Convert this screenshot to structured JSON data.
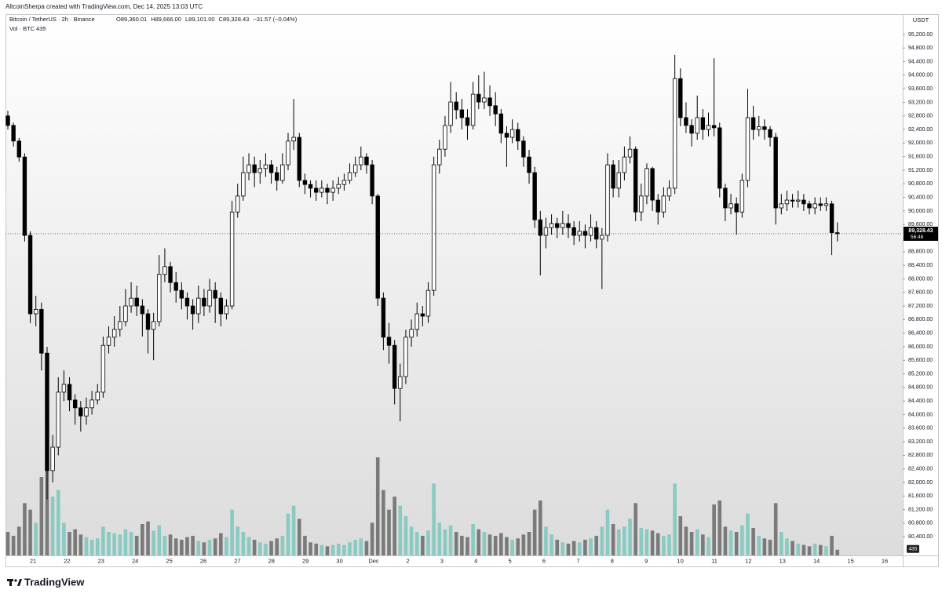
{
  "chart_data": {
    "type": "candlestick",
    "watermark": "AltcoinSherpa created with TradingView.com, Dec 14, 2025 13:03 UTC",
    "title": "Bitcoin / TetherUS · 2h · Binance",
    "ohlc_labels": [
      "O89,360.01",
      "H89,666.00",
      "L89,101.00",
      "C89,328.43"
    ],
    "change_label": "−31.57 (−0.04%)",
    "volume_title": "Vol · BTC",
    "volume_last_label": "435",
    "currency": "USDT",
    "last_price_label": "89,328.43",
    "countdown": "56:48",
    "xtick_labels": [
      "21",
      "22",
      "23",
      "24",
      "25",
      "26",
      "27",
      "28",
      "29",
      "30",
      "Dec",
      "2",
      "3",
      "4",
      "5",
      "6",
      "7",
      "8",
      "9",
      "10",
      "11",
      "12",
      "13",
      "14",
      "15",
      "16"
    ],
    "open": [
      92800,
      92520,
      92060,
      91590,
      89280,
      86970,
      87100,
      85810,
      82350,
      83040,
      84660,
      84890,
      84430,
      84200,
      83960,
      84200,
      84430,
      84660,
      86040,
      86280,
      86510,
      86740,
      87200,
      87430,
      87200,
      86970,
      86510,
      86740,
      88130,
      88360,
      87890,
      87660,
      87430,
      87200,
      86970,
      87430,
      87200,
      87660,
      87430,
      86970,
      87200,
      89970,
      90440,
      91130,
      91360,
      91130,
      91250,
      91360,
      91130,
      90900,
      91360,
      92060,
      92170,
      90900,
      90780,
      90670,
      90550,
      90670,
      90550,
      90670,
      90780,
      90900,
      91130,
      91360,
      91590,
      91360,
      90440,
      87430,
      86280,
      86040,
      84770,
      85120,
      86280,
      86510,
      86970,
      86900,
      87660,
      91360,
      91820,
      92520,
      93210,
      92980,
      92750,
      92520,
      93440,
      93210,
      93330,
      93100,
      92860,
      92290,
      92170,
      92400,
      92060,
      91590,
      91130,
      89740,
      89280,
      89510,
      89630,
      89510,
      89630,
      89510,
      89280,
      89400,
      89280,
      89510,
      89170,
      89280,
      91360,
      90670,
      91130,
      91590,
      91820,
      89970,
      90440,
      91250,
      90320,
      89970,
      90440,
      90670,
      93900,
      92750,
      92520,
      92290,
      92750,
      92400,
      92520,
      92450,
      90670,
      90090,
      90210,
      89970,
      90900,
      92750,
      92400,
      92480,
      92400,
      92170,
      90090,
      90210,
      90320,
      90290,
      90320,
      90210,
      90090,
      90210,
      90160,
      90210,
      89360.01
    ],
    "high": [
      92950,
      92600,
      92150,
      91700,
      89400,
      87500,
      87300,
      86000,
      83400,
      85100,
      85300,
      85100,
      84600,
      84400,
      84500,
      84700,
      84900,
      86300,
      86600,
      86900,
      87200,
      87700,
      87900,
      87800,
      87400,
      87100,
      87000,
      88700,
      88900,
      88500,
      88200,
      87900,
      87600,
      87400,
      87800,
      87700,
      88000,
      87900,
      87600,
      87400,
      90300,
      90800,
      91600,
      91700,
      91600,
      91500,
      91700,
      91500,
      91300,
      91700,
      92300,
      93300,
      92300,
      91100,
      90900,
      90900,
      90900,
      90800,
      90900,
      91000,
      91100,
      91400,
      91600,
      91900,
      91700,
      91500,
      90500,
      87600,
      86700,
      86200,
      85500,
      86500,
      86800,
      87300,
      87200,
      87900,
      91600,
      92100,
      92800,
      93800,
      93500,
      93300,
      93000,
      93800,
      94000,
      94100,
      93700,
      93500,
      93000,
      92500,
      92700,
      92600,
      92200,
      91800,
      91300,
      90000,
      89800,
      89900,
      89800,
      90000,
      89900,
      89700,
      89700,
      89600,
      89900,
      89700,
      89500,
      91700,
      91500,
      91500,
      91900,
      92200,
      91900,
      90800,
      91400,
      91300,
      90500,
      90700,
      90900,
      94600,
      94200,
      93200,
      92700,
      93400,
      93000,
      92900,
      94500,
      92600,
      90800,
      90500,
      90400,
      91100,
      93600,
      93100,
      92800,
      92700,
      92500,
      92300,
      90500,
      90600,
      90500,
      90600,
      90500,
      90300,
      90400,
      90400,
      90400,
      90300,
      89666
    ],
    "low": [
      92400,
      91900,
      91450,
      89100,
      86700,
      86600,
      85300,
      81500,
      82000,
      82800,
      84400,
      84100,
      83700,
      83500,
      83700,
      84000,
      84300,
      84500,
      85800,
      86000,
      86300,
      86600,
      87000,
      86900,
      86300,
      85800,
      85600,
      86600,
      87900,
      87600,
      87300,
      87100,
      86800,
      86500,
      86700,
      86900,
      87000,
      86700,
      86600,
      86800,
      87100,
      89800,
      90300,
      90900,
      90700,
      90800,
      91000,
      90800,
      90600,
      90800,
      91200,
      91800,
      90700,
      90500,
      90400,
      90300,
      90400,
      90200,
      90300,
      90500,
      90600,
      90800,
      91000,
      91200,
      91100,
      90200,
      87200,
      85900,
      85500,
      84300,
      83800,
      84900,
      86000,
      86300,
      86600,
      86700,
      87500,
      91100,
      91600,
      92300,
      92700,
      92400,
      92100,
      92400,
      93000,
      93000,
      92800,
      92500,
      92000,
      91300,
      92000,
      91800,
      91300,
      90800,
      89500,
      88100,
      88900,
      89300,
      89200,
      89300,
      89200,
      89000,
      89100,
      88900,
      89100,
      88900,
      87700,
      89100,
      90400,
      90400,
      90900,
      91400,
      89700,
      89700,
      90200,
      90000,
      89600,
      89800,
      90300,
      90500,
      92500,
      92300,
      91900,
      92100,
      92100,
      92200,
      92200,
      90400,
      89700,
      89900,
      89300,
      89800,
      90700,
      92100,
      92200,
      92100,
      91900,
      89600,
      89900,
      90000,
      90100,
      90100,
      90000,
      89900,
      89900,
      90000,
      90000,
      88700,
      89101
    ],
    "close": [
      92520,
      92060,
      91590,
      89280,
      86970,
      87100,
      85810,
      82350,
      83040,
      84660,
      84890,
      84430,
      84200,
      83960,
      84200,
      84430,
      84660,
      86040,
      86280,
      86510,
      86740,
      87200,
      87430,
      87200,
      86970,
      86510,
      86740,
      88130,
      88360,
      87890,
      87660,
      87430,
      87200,
      86970,
      87430,
      87200,
      87660,
      87430,
      86970,
      87200,
      89970,
      90440,
      91130,
      91360,
      91130,
      91250,
      91360,
      91130,
      90900,
      91360,
      92060,
      92170,
      90900,
      90780,
      90670,
      90550,
      90670,
      90550,
      90670,
      90780,
      90900,
      91130,
      91360,
      91590,
      91360,
      90440,
      87430,
      86280,
      86040,
      84770,
      85120,
      86280,
      86510,
      86970,
      86900,
      87660,
      91360,
      91820,
      92520,
      93210,
      92980,
      92750,
      92520,
      93440,
      93210,
      93330,
      93100,
      92860,
      92290,
      92170,
      92400,
      92060,
      91590,
      91130,
      89740,
      89280,
      89510,
      89630,
      89510,
      89630,
      89510,
      89280,
      89400,
      89280,
      89510,
      89170,
      89280,
      91360,
      90670,
      91130,
      91590,
      91820,
      89970,
      90440,
      91250,
      90320,
      89970,
      90440,
      90670,
      93900,
      92750,
      92520,
      92290,
      92750,
      92400,
      92520,
      92450,
      90670,
      90090,
      90210,
      89970,
      90900,
      92750,
      92400,
      92480,
      92400,
      92170,
      90090,
      90210,
      90320,
      90290,
      90320,
      90210,
      90090,
      90210,
      90160,
      90210,
      89360.01,
      89328.43
    ],
    "volume": [
      1800,
      1500,
      2200,
      4000,
      3500,
      2500,
      6000,
      9000,
      4500,
      5000,
      2500,
      1800,
      2000,
      1600,
      1400,
      1200,
      1300,
      2200,
      1800,
      1700,
      1600,
      2000,
      1800,
      1500,
      2400,
      2600,
      1900,
      2300,
      1500,
      1600,
      1300,
      1200,
      1400,
      1500,
      1100,
      1000,
      1200,
      1300,
      1700,
      1400,
      3500,
      2200,
      1800,
      1400,
      1200,
      1000,
      900,
      1100,
      1300,
      1500,
      3200,
      3800,
      2800,
      1500,
      1000,
      900,
      800,
      700,
      800,
      900,
      800,
      1000,
      1200,
      1300,
      1100,
      2500,
      7500,
      5000,
      3500,
      4500,
      3800,
      3000,
      2200,
      1800,
      1500,
      1900,
      5500,
      2500,
      2000,
      2300,
      1800,
      1500,
      1400,
      2400,
      2000,
      1800,
      1600,
      1500,
      1700,
      1400,
      1200,
      1300,
      1600,
      1800,
      3500,
      4200,
      2200,
      1600,
      1200,
      1000,
      900,
      1100,
      1000,
      1200,
      1300,
      1500,
      2200,
      3500,
      2400,
      2000,
      2200,
      2800,
      4000,
      2100,
      2000,
      1900,
      1700,
      1500,
      1600,
      5500,
      3000,
      2200,
      1800,
      2000,
      1600,
      1400,
      3900,
      4200,
      2200,
      1900,
      1800,
      2300,
      3200,
      2100,
      1500,
      1300,
      1200,
      4000,
      1800,
      1300,
      1100,
      900,
      800,
      700,
      900,
      800,
      700,
      1500,
      435
    ],
    "up_color": "#ffffff",
    "down_color": "#000000",
    "wick_color": "#000000",
    "up_volume_color": "#7fc8bf",
    "down_volume_color": "#6f6f6f",
    "ylim": [
      79850,
      95800
    ],
    "yticks": [
      {
        "value": 80400,
        "label": "80,400.00"
      },
      {
        "value": 80800,
        "label": "80,800.00"
      },
      {
        "value": 81200,
        "label": "81,200.00"
      },
      {
        "value": 81600,
        "label": "81,600.00"
      },
      {
        "value": 82000,
        "label": "82,000.00"
      },
      {
        "value": 82400,
        "label": "82,400.00"
      },
      {
        "value": 82800,
        "label": "82,800.00"
      },
      {
        "value": 83200,
        "label": "83,200.00"
      },
      {
        "value": 83600,
        "label": "83,600.00"
      },
      {
        "value": 84000,
        "label": "84,000.00"
      },
      {
        "value": 84400,
        "label": "84,400.00"
      },
      {
        "value": 84800,
        "label": "84,800.00"
      },
      {
        "value": 85200,
        "label": "85,200.00"
      },
      {
        "value": 85600,
        "label": "85,600.00"
      },
      {
        "value": 86000,
        "label": "86,000.00"
      },
      {
        "value": 86400,
        "label": "86,400.00"
      },
      {
        "value": 86800,
        "label": "86,800.00"
      },
      {
        "value": 87200,
        "label": "87,200.00"
      },
      {
        "value": 87600,
        "label": "87,600.00"
      },
      {
        "value": 88000,
        "label": "88,000.00"
      },
      {
        "value": 88400,
        "label": "88,400.00"
      },
      {
        "value": 88800,
        "label": "88,800.00"
      },
      {
        "value": 89200,
        "label": "89,200.00"
      },
      {
        "value": 89600,
        "label": "89,600.00"
      },
      {
        "value": 90000,
        "label": "90,000.00"
      },
      {
        "value": 90400,
        "label": "90,400.00"
      },
      {
        "value": 90800,
        "label": "90,800.00"
      },
      {
        "value": 91200,
        "label": "91,200.00"
      },
      {
        "value": 91600,
        "label": "91,600.00"
      },
      {
        "value": 92000,
        "label": "92,000.00"
      },
      {
        "value": 92400,
        "label": "92,400.00"
      },
      {
        "value": 92800,
        "label": "92,800.00"
      },
      {
        "value": 93200,
        "label": "93,200.00"
      },
      {
        "value": 93600,
        "label": "93,600.00"
      },
      {
        "value": 94000,
        "label": "94,000.00"
      },
      {
        "value": 94400,
        "label": "94,400.00"
      },
      {
        "value": 94800,
        "label": "94,800.00"
      },
      {
        "value": 95200,
        "label": "95,200.00"
      }
    ],
    "grid": false
  },
  "footer": {
    "brand": "TradingView"
  }
}
